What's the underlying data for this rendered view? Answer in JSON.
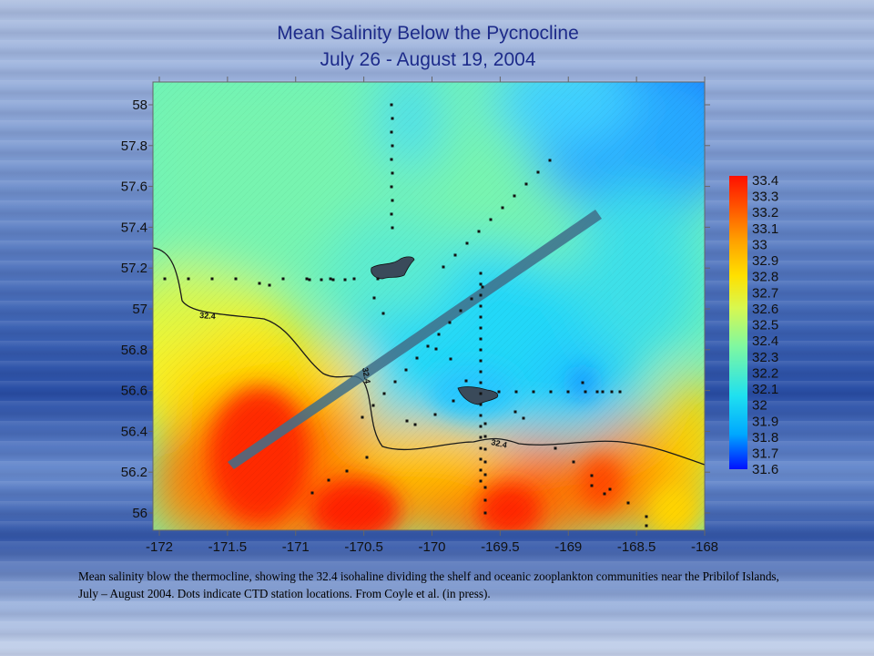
{
  "title": "Mean Salinity Below the Pycnocline",
  "subtitle": "July 26 - August 19, 2004",
  "caption": "Mean salinity blow the thermocline, showing the 32.4 isohaline dividing the shelf and oceanic zooplankton communities near the Pribilof Islands, July – August 2004. Dots indicate CTD station locations. From Coyle et al. (in press).",
  "chart_data": {
    "type": "heatmap",
    "title": "Mean Salinity Below the Pycnocline",
    "subtitle": "July 26 - August 19, 2004",
    "x_ticks": [
      "-172",
      "-171.5",
      "-171",
      "-170.5",
      "-170",
      "-169.5",
      "-169",
      "-168.5",
      "-168"
    ],
    "y_ticks": [
      "58",
      "57.8",
      "57.6",
      "57.4",
      "57.2",
      "57",
      "56.8",
      "56.6",
      "56.4",
      "56.2",
      "56"
    ],
    "xlim": [
      -172,
      -168
    ],
    "ylim": [
      55.9,
      58.1
    ],
    "colorbar_labels": [
      "33.4",
      "33.3",
      "33.2",
      "33.1",
      "33",
      "32.9",
      "32.8",
      "32.7",
      "32.6",
      "32.5",
      "32.4",
      "32.3",
      "32.2",
      "32.1",
      "32",
      "31.9",
      "31.8",
      "31.7",
      "31.6"
    ],
    "colorbar_range": [
      31.6,
      33.4
    ],
    "contour_label": "32.4",
    "grid": false,
    "colors": {
      "high": "#ff1a00",
      "mid_high": "#ffd400",
      "mid": "#9dfc6c",
      "low": "#17d4ff",
      "lowest": "#0020f0"
    }
  }
}
